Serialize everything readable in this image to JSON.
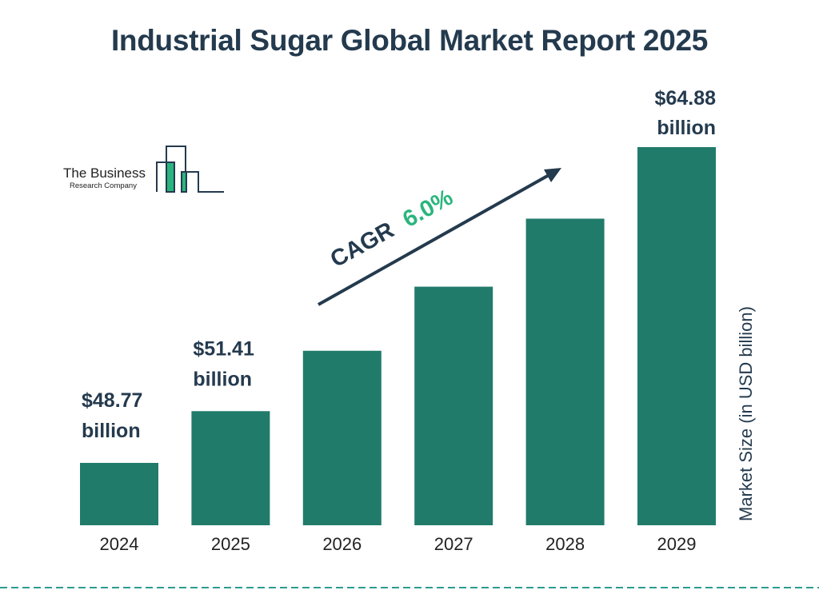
{
  "title": "Industrial Sugar Global Market Report 2025",
  "logo": {
    "line1": "The Business",
    "line2": "Research Company"
  },
  "colors": {
    "bar": "#217b6b",
    "title": "#243a4e",
    "cagr_value": "#2bb57e",
    "dash": "#2a9d8f"
  },
  "chart_data": {
    "type": "bar",
    "title": "Industrial Sugar Global Market Report 2025",
    "categories": [
      "2024",
      "2025",
      "2026",
      "2027",
      "2028",
      "2029"
    ],
    "values": [
      48.77,
      51.41,
      54.49,
      57.76,
      61.23,
      64.88
    ],
    "data_labels": [
      {
        "index": 0,
        "line1": "$48.77",
        "line2": "billion"
      },
      {
        "index": 1,
        "line1": "$51.41",
        "line2": "billion"
      },
      {
        "index": 5,
        "line1": "$64.88",
        "line2": "billion"
      }
    ],
    "ylabel": "Market Size (in USD billion)",
    "xlabel": "",
    "annotation": {
      "label": "CAGR",
      "value": "6.0%"
    },
    "grid": false
  }
}
